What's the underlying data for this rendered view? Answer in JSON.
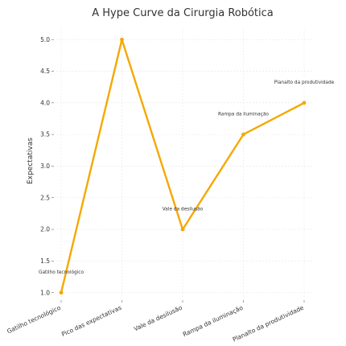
{
  "chart_data": {
    "type": "line",
    "title": "A Hype Curve da Cirurgia Robótica",
    "xlabel": "",
    "ylabel": "Expectativas",
    "categories": [
      "Gatilho tecnológico",
      "Pico das expectativas",
      "Vale da desilusão",
      "Rampa da iluminação",
      "Planalto da produtividade"
    ],
    "values": [
      1.0,
      5.0,
      2.0,
      3.5,
      4.0
    ],
    "ylim": [
      0.92,
      5.18
    ],
    "yticks": [
      "1.0",
      "1.5",
      "2.0",
      "2.5",
      "3.0",
      "3.5",
      "4.0",
      "4.5",
      "5.0"
    ],
    "grid": true,
    "line_color": "#f5a800",
    "annotations": [
      {
        "text": "Gatilho tecnológico",
        "x": 0,
        "y": 1.3
      },
      {
        "text": "Vale da desilusão",
        "x": 2,
        "y": 2.3
      },
      {
        "text": "Rampa da iluminação",
        "x": 3,
        "y": 3.8
      },
      {
        "text": "Planalto da produtividade",
        "x": 4,
        "y": 4.3
      }
    ]
  }
}
